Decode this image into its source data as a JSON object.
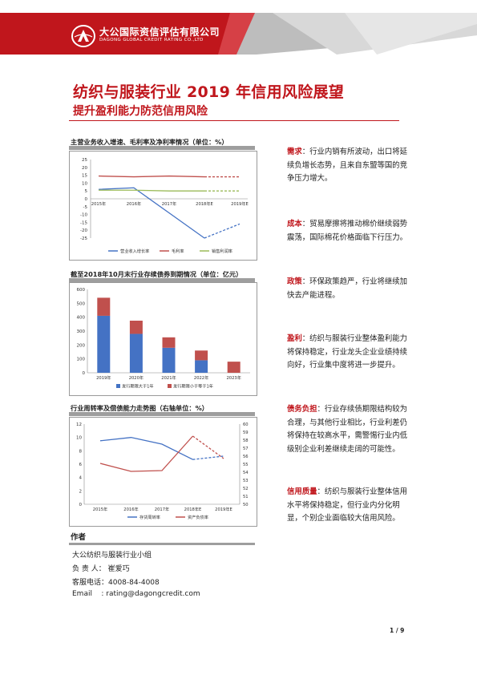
{
  "header": {
    "company_cn": "大公国际资信评估有限公司",
    "company_en": "DAGONG GLOBAL CREDIT RATING CO.,LTD"
  },
  "title": "纺织与服装行业 2019 年信用风险展望",
  "subtitle": "提升盈利能力防范信用风险",
  "colors": {
    "accent_red": "#c0161c",
    "series_blue": "#4472c4",
    "series_red": "#c0504d",
    "series_green": "#9bbb59"
  },
  "charts": [
    {
      "heading": "主营业务收入增速、毛利率及净利率情况（单位：%）",
      "chart_data": {
        "type": "line",
        "categories": [
          "2015年",
          "2016年",
          "2017年",
          "2018年E",
          "2019年E"
        ],
        "y_ticks": [
          "25",
          "20",
          "15",
          "10",
          "5",
          "0",
          "-5",
          "-10",
          "-15",
          "-20",
          "-25"
        ],
        "ylim": [
          -25,
          25
        ],
        "forecast_from_index": 3,
        "legend": "bottom",
        "series": [
          {
            "name": "营业收入增长率",
            "values": [
              6,
              7,
              -9,
              -25,
              -16
            ]
          },
          {
            "name": "毛利率",
            "values": [
              14.5,
              14,
              14.5,
              14,
              14
            ]
          },
          {
            "name": "销售利润率",
            "values": [
              5.5,
              5.5,
              5,
              5,
              5
            ]
          }
        ]
      }
    },
    {
      "heading": "截至2018年10月末行业存续债券到期情况（单位：亿元）",
      "chart_data": {
        "type": "bar",
        "stacked": true,
        "categories": [
          "2019年",
          "2020年",
          "2021年",
          "2022年",
          "2023年"
        ],
        "y_ticks": [
          "600",
          "500",
          "400",
          "300",
          "200",
          "100",
          "0"
        ],
        "ylim": [
          0,
          600
        ],
        "legend": "bottom",
        "series": [
          {
            "name": "发行期限大于1年",
            "values": [
              410,
              280,
              180,
              90,
              0
            ]
          },
          {
            "name": "发行期限小于等于1年",
            "values": [
              130,
              95,
              75,
              70,
              80
            ]
          }
        ]
      }
    },
    {
      "heading": "行业周转率及偿债能力走势图（右轴单位：%）",
      "chart_data": {
        "type": "line",
        "categories": [
          "2015年",
          "2016年",
          "2017年",
          "2018年E",
          "2019年E"
        ],
        "y_ticks": [
          "12",
          "10",
          "8",
          "6",
          "4",
          "2",
          "0"
        ],
        "ylim": [
          0,
          12
        ],
        "y2_ticks": [
          "60",
          "59",
          "58",
          "57",
          "56",
          "55",
          "54",
          "53",
          "52",
          "51",
          "50"
        ],
        "y2lim": [
          50,
          60
        ],
        "forecast_from_index": 3,
        "legend": "bottom",
        "series": [
          {
            "name": "存货周转率",
            "axis": "left",
            "values": [
              9.5,
              10,
              9,
              6.7,
              7.2
            ]
          },
          {
            "name": "资产负债率",
            "axis": "right",
            "values": [
              55.1,
              54.1,
              54.2,
              58.5,
              55.7
            ]
          }
        ]
      }
    }
  ],
  "right_column": [
    {
      "key": "需求",
      "text": "：行业内销有所波动，出口将延续负增长态势，且来自东盟等国的竞争压力增大。"
    },
    {
      "key": "成本",
      "text": "：贸易摩擦将推动棉价继续弱势震荡，国际棉花价格面临下行压力。"
    },
    {
      "key": "政策",
      "text": "：环保政策趋严，行业将继续加快去产能进程。"
    },
    {
      "key": "盈利",
      "text": "：纺织与服装行业整体盈利能力将保持稳定，行业龙头企业业绩持续向好，行业集中度将进一步提升。"
    },
    {
      "key": "债务负担",
      "text": "：行业存续债期限结构较为合理，与其他行业相比，行业利差仍将保持在较高水平，需警惕行业内低级别企业利差继续走阔的可能性。"
    },
    {
      "key": "信用质量",
      "text": "：纺织与服装行业整体信用水平将保持稳定，但行业内分化明显，个别企业面临较大信用风险。"
    }
  ],
  "author": {
    "heading": "作者",
    "team": "大公纺织与服装行业小组",
    "lead": "负 责 人： 崔爱巧",
    "phone": "客服电话：4008-84-4008",
    "email": "Email    : rating@dagongcredit.com"
  },
  "page_number": "1 / 9"
}
